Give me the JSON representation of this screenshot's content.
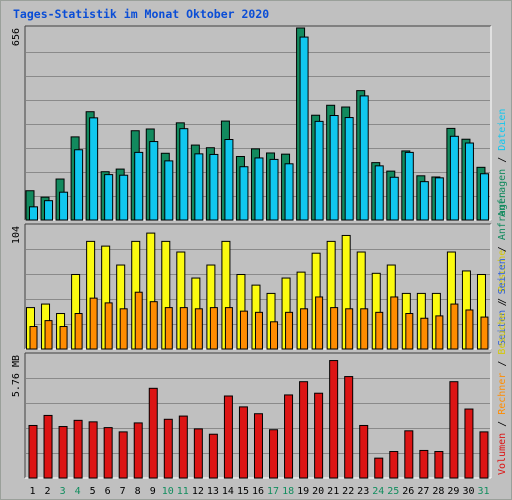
{
  "title": "Tages-Statistik im Monat Oktober 2020",
  "colors": {
    "anfragen": "#128a5e",
    "dateien": "#10c7ef",
    "seiten": "#2f60d8",
    "besuche": "#fbfb10",
    "rechner": "#ff8c00",
    "volumen": "#dc1414",
    "weekend_day": "#118d5e",
    "weekday": "#000000",
    "title": "#0a4dd6"
  },
  "chart_data": [
    {
      "type": "bar",
      "panel": "top",
      "ymax_label": "656",
      "ymax": 656,
      "y_axis_labels": [
        {
          "text": "Anfragen",
          "color": "#128a5e"
        },
        {
          "text": " / ",
          "color": "#000000"
        },
        {
          "text": "Dateien",
          "color": "#10c7ef"
        }
      ],
      "x": [
        "1",
        "2",
        "3",
        "4",
        "5",
        "6",
        "7",
        "8",
        "9",
        "10",
        "11",
        "12",
        "13",
        "14",
        "15",
        "16",
        "17",
        "18",
        "19",
        "20",
        "21",
        "22",
        "23",
        "24",
        "25",
        "26",
        "27",
        "28",
        "29",
        "30",
        "31"
      ],
      "series": [
        {
          "name": "Anfragen",
          "values": [
            100,
            78,
            140,
            284,
            370,
            165,
            174,
            305,
            311,
            228,
            332,
            256,
            247,
            338,
            217,
            243,
            229,
            225,
            656,
            358,
            392,
            386,
            442,
            196,
            167,
            236,
            151,
            147,
            313,
            276,
            180
          ]
        },
        {
          "name": "Dateien",
          "values": [
            45,
            66,
            95,
            240,
            349,
            155,
            153,
            231,
            268,
            202,
            312,
            226,
            224,
            275,
            182,
            212,
            207,
            192,
            625,
            337,
            357,
            350,
            424,
            185,
            146,
            231,
            131,
            144,
            286,
            263,
            158
          ]
        }
      ]
    },
    {
      "type": "bar",
      "panel": "middle",
      "ymax_label": "104",
      "ymax": 104,
      "y_axis_labels": [
        {
          "text": "Seiten",
          "color": "#2f60d8"
        },
        {
          "text": " / ",
          "color": "#000000"
        },
        {
          "text": "Besuche",
          "color": "#d4c80a"
        }
      ],
      "x": [
        "1",
        "2",
        "3",
        "4",
        "5",
        "6",
        "7",
        "8",
        "9",
        "10",
        "11",
        "12",
        "13",
        "14",
        "15",
        "16",
        "17",
        "18",
        "19",
        "20",
        "21",
        "22",
        "23",
        "24",
        "25",
        "26",
        "27",
        "28",
        "29",
        "30",
        "31"
      ],
      "series": [
        {
          "name": "Besuche",
          "values": [
            35,
            38,
            30,
            63,
            91,
            87,
            71,
            91,
            98,
            91,
            82,
            60,
            71,
            91,
            63,
            54,
            47,
            60,
            65,
            81,
            91,
            96,
            82,
            64,
            71,
            47,
            47,
            47,
            82,
            66,
            63
          ]
        },
        {
          "name": "Rechner",
          "values": [
            19,
            24,
            19,
            30,
            43,
            39,
            34,
            48,
            40,
            35,
            35,
            34,
            35,
            35,
            32,
            31,
            23,
            31,
            34,
            44,
            35,
            34,
            34,
            31,
            44,
            30,
            26,
            28,
            38,
            33,
            27
          ]
        }
      ]
    },
    {
      "type": "bar",
      "panel": "bottom",
      "ymax_label": "5.76 MB",
      "ymax": 5.76,
      "y_axis_labels": [
        {
          "text": "Volumen",
          "color": "#dc1414"
        },
        {
          "text": " / ",
          "color": "#000000"
        },
        {
          "text": "Rechner",
          "color": "#ff8c00"
        },
        {
          "text": " / ",
          "color": "#000000"
        },
        {
          "text": "Besuche",
          "color": "#d4c80a"
        },
        {
          "text": " / ",
          "color": "#000000"
        },
        {
          "text": "Seiten",
          "color": "#2f60d8"
        },
        {
          "text": " / ",
          "color": "#000000"
        },
        {
          "text": "Anfragen",
          "color": "#128a5e"
        }
      ],
      "x": [
        "1",
        "2",
        "3",
        "4",
        "5",
        "6",
        "7",
        "8",
        "9",
        "10",
        "11",
        "12",
        "13",
        "14",
        "15",
        "16",
        "17",
        "18",
        "19",
        "20",
        "21",
        "22",
        "23",
        "24",
        "25",
        "26",
        "27",
        "28",
        "29",
        "30",
        "31"
      ],
      "series": [
        {
          "name": "Volumen",
          "values": [
            2.46,
            2.93,
            2.41,
            2.7,
            2.63,
            2.36,
            2.16,
            2.58,
            4.2,
            2.75,
            2.9,
            2.3,
            2.05,
            3.84,
            3.33,
            3.01,
            2.26,
            3.89,
            4.51,
            3.97,
            5.5,
            4.75,
            2.46,
            0.93,
            1.24,
            2.21,
            1.29,
            1.24,
            4.51,
            3.23,
            2.16
          ]
        }
      ]
    }
  ]
}
